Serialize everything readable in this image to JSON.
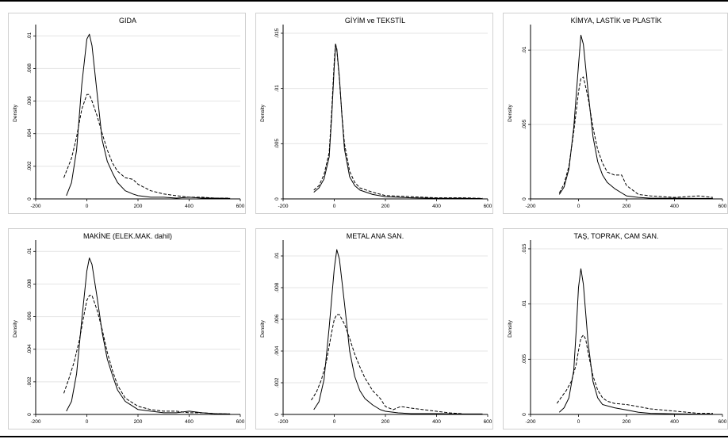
{
  "chart_data": [
    {
      "type": "line",
      "title": "GIDA",
      "ylabel": "Density",
      "xlim": [
        -200,
        600
      ],
      "ylim": [
        0,
        0.0105
      ],
      "xticks": [
        -200,
        0,
        200,
        400,
        600
      ],
      "yticks": [
        0,
        0.002,
        0.004,
        0.006,
        0.008,
        0.01
      ],
      "ytick_labels": [
        "0",
        ".002",
        ".004",
        ".006",
        ".008",
        ".01"
      ],
      "series": [
        {
          "style": "solid",
          "x": [
            -80,
            -60,
            -40,
            -20,
            0,
            10,
            20,
            40,
            60,
            80,
            100,
            120,
            150,
            180,
            200,
            250,
            300,
            350,
            400,
            450,
            500,
            560
          ],
          "y": [
            0.0002,
            0.001,
            0.003,
            0.007,
            0.0098,
            0.0101,
            0.0094,
            0.0065,
            0.0036,
            0.0023,
            0.0016,
            0.001,
            0.0005,
            0.0003,
            0.0002,
            0.0001,
            0.0001,
            5e-05,
            0.0001,
            5e-05,
            5e-05,
            3e-05
          ]
        },
        {
          "style": "dashed",
          "x": [
            -90,
            -60,
            -40,
            -20,
            0,
            10,
            20,
            40,
            60,
            80,
            100,
            120,
            150,
            180,
            200,
            250,
            300,
            350,
            400,
            450,
            500,
            560
          ],
          "y": [
            0.0013,
            0.0025,
            0.0038,
            0.0055,
            0.0064,
            0.0064,
            0.006,
            0.0051,
            0.004,
            0.003,
            0.0022,
            0.0017,
            0.0013,
            0.0012,
            0.0009,
            0.0005,
            0.0003,
            0.0002,
            0.0001,
            0.0001,
            5e-05,
            5e-05
          ]
        }
      ]
    },
    {
      "type": "line",
      "title": "GİYİM ve TEKSTİL",
      "ylabel": "Density",
      "xlim": [
        -200,
        600
      ],
      "ylim": [
        0,
        0.0155
      ],
      "xticks": [
        -200,
        0,
        200,
        400,
        600
      ],
      "yticks": [
        0,
        0.005,
        0.01,
        0.015
      ],
      "ytick_labels": [
        "0",
        ".005",
        ".01",
        ".015"
      ],
      "series": [
        {
          "style": "solid",
          "x": [
            -80,
            -60,
            -40,
            -20,
            -10,
            0,
            5,
            10,
            20,
            30,
            40,
            60,
            80,
            100,
            150,
            200,
            300,
            400,
            500,
            580
          ],
          "y": [
            0.0006,
            0.001,
            0.0018,
            0.0038,
            0.0075,
            0.012,
            0.0138,
            0.0136,
            0.011,
            0.0075,
            0.0045,
            0.002,
            0.0012,
            0.0008,
            0.0004,
            0.0002,
            0.0001,
            5e-05,
            5e-05,
            3e-05
          ]
        },
        {
          "style": "dashed",
          "x": [
            -80,
            -60,
            -40,
            -20,
            -10,
            0,
            5,
            10,
            20,
            30,
            40,
            60,
            80,
            100,
            150,
            200,
            300,
            400,
            500,
            580
          ],
          "y": [
            0.0008,
            0.0012,
            0.0022,
            0.0042,
            0.008,
            0.0125,
            0.0141,
            0.0135,
            0.0108,
            0.0076,
            0.005,
            0.0025,
            0.0015,
            0.001,
            0.0006,
            0.0003,
            0.0002,
            0.0001,
            0.0001,
            5e-05
          ]
        }
      ]
    },
    {
      "type": "line",
      "title": "KİMYA, LASTİK ve PLASTİK",
      "ylabel": "Density",
      "xlim": [
        -200,
        600
      ],
      "ylim": [
        0,
        0.0115
      ],
      "xticks": [
        -200,
        0,
        200,
        400,
        600
      ],
      "yticks": [
        0,
        0.005,
        0.01
      ],
      "ytick_labels": [
        "0",
        ".005",
        ".01"
      ],
      "series": [
        {
          "style": "solid",
          "x": [
            -80,
            -60,
            -40,
            -20,
            0,
            10,
            20,
            40,
            60,
            80,
            100,
            120,
            150,
            180,
            200,
            250,
            300,
            400,
            500,
            560
          ],
          "y": [
            0.0003,
            0.0008,
            0.002,
            0.0048,
            0.009,
            0.011,
            0.0104,
            0.0072,
            0.0042,
            0.0025,
            0.0016,
            0.0011,
            0.0007,
            0.0004,
            0.0002,
            0.0001,
            5e-05,
            5e-05,
            3e-05,
            3e-05
          ]
        },
        {
          "style": "dashed",
          "x": [
            -80,
            -60,
            -40,
            -20,
            0,
            10,
            20,
            40,
            60,
            80,
            100,
            120,
            150,
            180,
            200,
            250,
            300,
            400,
            500,
            560
          ],
          "y": [
            0.0004,
            0.001,
            0.0022,
            0.0045,
            0.0072,
            0.0081,
            0.0082,
            0.0068,
            0.0048,
            0.0033,
            0.0024,
            0.0018,
            0.0016,
            0.0016,
            0.0009,
            0.0003,
            0.0002,
            0.0001,
            0.0002,
            0.0001
          ]
        }
      ]
    },
    {
      "type": "line",
      "title": "MAKİNE (ELEK.MAK. dahil)",
      "ylabel": "Density",
      "xlim": [
        -200,
        600
      ],
      "ylim": [
        0,
        0.0105
      ],
      "xticks": [
        -200,
        0,
        200,
        400,
        600
      ],
      "yticks": [
        0,
        0.002,
        0.004,
        0.006,
        0.008,
        0.01
      ],
      "ytick_labels": [
        "0",
        ".002",
        ".004",
        ".006",
        ".008",
        ".01"
      ],
      "series": [
        {
          "style": "solid",
          "x": [
            -80,
            -60,
            -40,
            -20,
            0,
            10,
            20,
            40,
            60,
            80,
            100,
            120,
            150,
            180,
            200,
            250,
            300,
            350,
            400,
            450,
            500,
            560
          ],
          "y": [
            0.0002,
            0.0008,
            0.0025,
            0.0058,
            0.0088,
            0.0096,
            0.0092,
            0.0072,
            0.005,
            0.0034,
            0.0024,
            0.0015,
            0.0008,
            0.0005,
            0.0003,
            0.0002,
            0.0001,
            0.0001,
            0.0002,
            0.0001,
            5e-05,
            3e-05
          ]
        },
        {
          "style": "dashed",
          "x": [
            -90,
            -70,
            -50,
            -30,
            -10,
            0,
            10,
            20,
            40,
            60,
            80,
            100,
            120,
            150,
            180,
            200,
            250,
            300,
            350,
            400,
            450,
            500,
            560
          ],
          "y": [
            0.0013,
            0.0022,
            0.0032,
            0.0045,
            0.0062,
            0.007,
            0.0073,
            0.0073,
            0.0064,
            0.0052,
            0.0038,
            0.0027,
            0.0018,
            0.001,
            0.0007,
            0.0005,
            0.0003,
            0.0002,
            0.0002,
            0.0001,
            0.0001,
            5e-05,
            3e-05
          ]
        }
      ]
    },
    {
      "type": "line",
      "title": "METAL ANA SAN.",
      "ylabel": "Density",
      "xlim": [
        -200,
        600
      ],
      "ylim": [
        0,
        0.0108
      ],
      "xticks": [
        -200,
        0,
        200,
        400,
        600
      ],
      "yticks": [
        0,
        0.002,
        0.004,
        0.006,
        0.008,
        0.01
      ],
      "ytick_labels": [
        "0",
        ".002",
        ".004",
        ".006",
        ".008",
        ".01"
      ],
      "series": [
        {
          "style": "solid",
          "x": [
            -80,
            -60,
            -40,
            -20,
            0,
            10,
            20,
            40,
            60,
            80,
            100,
            120,
            150,
            180,
            200,
            250,
            300,
            400,
            500,
            580
          ],
          "y": [
            0.0003,
            0.0008,
            0.0022,
            0.0055,
            0.0092,
            0.0104,
            0.0098,
            0.007,
            0.004,
            0.0024,
            0.0015,
            0.001,
            0.0006,
            0.0003,
            0.0002,
            0.0001,
            5e-05,
            5e-05,
            3e-05,
            3e-05
          ]
        },
        {
          "style": "dashed",
          "x": [
            -90,
            -70,
            -50,
            -30,
            -10,
            0,
            10,
            20,
            40,
            60,
            80,
            100,
            120,
            150,
            180,
            200,
            230,
            260,
            300,
            350,
            400,
            450,
            500
          ],
          "y": [
            0.0009,
            0.0014,
            0.0022,
            0.0034,
            0.0052,
            0.006,
            0.0063,
            0.0063,
            0.0057,
            0.0048,
            0.0038,
            0.003,
            0.0023,
            0.0015,
            0.001,
            0.0005,
            0.0003,
            0.0005,
            0.0004,
            0.0003,
            0.0002,
            0.0001,
            5e-05
          ]
        }
      ]
    },
    {
      "type": "line",
      "title": "TAŞ, TOPRAK, CAM SAN.",
      "ylabel": "Density",
      "xlim": [
        -200,
        600
      ],
      "ylim": [
        0,
        0.0155
      ],
      "xticks": [
        -200,
        0,
        200,
        400,
        600
      ],
      "yticks": [
        0,
        0.005,
        0.01,
        0.015
      ],
      "ytick_labels": [
        "0",
        ".005",
        ".01",
        ".015"
      ],
      "series": [
        {
          "style": "solid",
          "x": [
            -80,
            -60,
            -40,
            -20,
            -10,
            0,
            10,
            20,
            40,
            60,
            80,
            100,
            150,
            200,
            250,
            300,
            400,
            500,
            560
          ],
          "y": [
            0.0002,
            0.0006,
            0.0015,
            0.004,
            0.0075,
            0.0115,
            0.0132,
            0.0118,
            0.0065,
            0.003,
            0.0015,
            0.0009,
            0.0006,
            0.0004,
            0.0002,
            0.0001,
            5e-05,
            3e-05,
            3e-05
          ]
        },
        {
          "style": "dashed",
          "x": [
            -90,
            -70,
            -50,
            -30,
            -10,
            0,
            10,
            20,
            30,
            40,
            60,
            80,
            100,
            120,
            150,
            200,
            250,
            300,
            350,
            400,
            450,
            500,
            560
          ],
          "y": [
            0.001,
            0.0016,
            0.0022,
            0.003,
            0.0045,
            0.0058,
            0.0069,
            0.0072,
            0.0068,
            0.0056,
            0.0035,
            0.0022,
            0.0015,
            0.0012,
            0.001,
            0.0009,
            0.0007,
            0.0005,
            0.0004,
            0.0003,
            0.0002,
            0.0001,
            0.0001
          ]
        }
      ]
    }
  ]
}
